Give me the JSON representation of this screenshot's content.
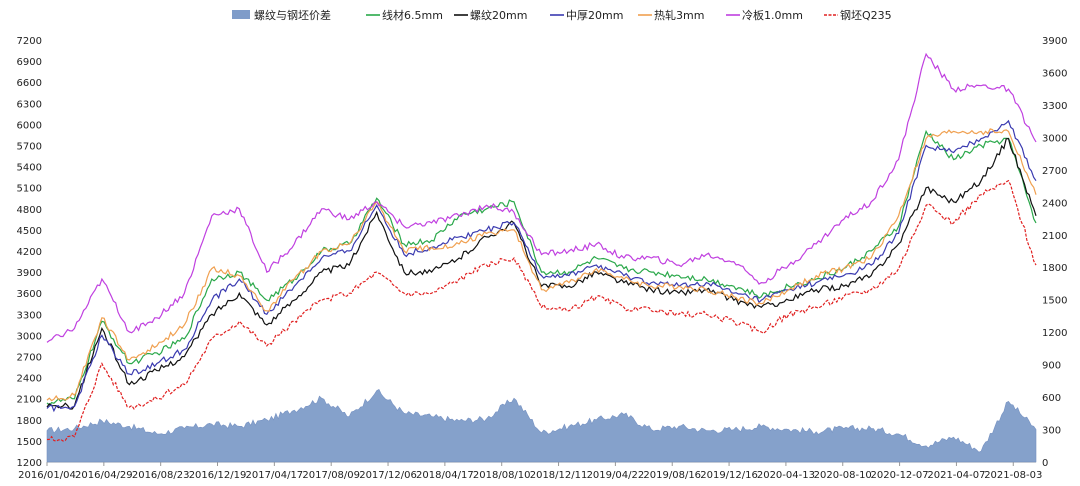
{
  "chart_data": {
    "type": "line",
    "title": "",
    "xlabel": "",
    "ylabel": "",
    "ylim_left": [
      1200,
      7200
    ],
    "ylim_right": [
      0,
      3900
    ],
    "left_ticks": [
      1200,
      1500,
      1800,
      2100,
      2400,
      2700,
      3000,
      3300,
      3600,
      3900,
      4200,
      4500,
      4800,
      5100,
      5400,
      5700,
      6000,
      6300,
      6600,
      6900,
      7200
    ],
    "right_ticks": [
      0,
      300,
      600,
      900,
      1200,
      1500,
      1800,
      2100,
      2400,
      2700,
      3000,
      3300,
      3600,
      3900
    ],
    "x_tick_labels": [
      "2016/01/04",
      "2016/04/29",
      "2016/08/23",
      "2016/12/19",
      "2017/04/17",
      "2017/08/09",
      "2017/12/06",
      "2018/04/17",
      "2018/08/10",
      "2018/12/11",
      "2019/04/22",
      "2019/08/16",
      "2019/12/16",
      "2020-04-13",
      "2020-08-10",
      "2020-12-07",
      "2021-04-07",
      "2021-08-03"
    ],
    "legend_position": "top-center",
    "x": [
      "2016/01/04",
      "2016/02/20",
      "2016/04/29",
      "2016/06/26",
      "2016/08/23",
      "2016/10/20",
      "2016/12/19",
      "2017/02/15",
      "2017/04/17",
      "2017/06/13",
      "2017/08/09",
      "2017/10/07",
      "2017/12/06",
      "2018/02/20",
      "2018/04/17",
      "2018/06/14",
      "2018/08/10",
      "2018/10/10",
      "2018/12/11",
      "2019/02/15",
      "2019/04/22",
      "2019/06/19",
      "2019/08/16",
      "2019/10/16",
      "2019/12/16",
      "2020/02/13",
      "2020/04/13",
      "2020/06/11",
      "2020/08/10",
      "2020/10/08",
      "2020/12/07",
      "2021/02/05",
      "2021/04/07",
      "2021/06/05",
      "2021/08/03",
      "2021/10/01",
      "2021/11/20"
    ],
    "series": [
      {
        "name": "螺纹与钢坯价差",
        "type": "area",
        "axis": "right",
        "color": "#7f9cc9",
        "values": [
          290,
          310,
          380,
          330,
          260,
          310,
          350,
          330,
          390,
          480,
          590,
          420,
          660,
          450,
          420,
          380,
          400,
          590,
          270,
          330,
          390,
          440,
          300,
          330,
          290,
          300,
          330,
          300,
          280,
          310,
          310,
          260,
          150,
          230,
          100,
          560,
          300
        ]
      },
      {
        "name": "线材6.5mm",
        "type": "line",
        "axis": "left",
        "color": "#2aa84a",
        "values": [
          2040,
          2100,
          3200,
          2600,
          2750,
          2950,
          3800,
          3900,
          3500,
          3800,
          4200,
          4300,
          4950,
          4300,
          4350,
          4700,
          4800,
          4900,
          3900,
          3900,
          4100,
          3950,
          3900,
          3850,
          3800,
          3700,
          3550,
          3700,
          3800,
          3950,
          4200,
          4550,
          5900,
          5500,
          5700,
          5800,
          4600
        ]
      },
      {
        "name": "螺纹20mm",
        "type": "line",
        "axis": "left",
        "color": "#111111",
        "values": [
          1980,
          2000,
          3100,
          2300,
          2500,
          2700,
          3300,
          3600,
          3150,
          3500,
          3900,
          4000,
          4750,
          3900,
          3900,
          4100,
          4400,
          4600,
          3700,
          3700,
          3900,
          3750,
          3650,
          3600,
          3650,
          3500,
          3400,
          3500,
          3650,
          3700,
          3850,
          4300,
          5100,
          4900,
          5200,
          5800,
          4700
        ]
      },
      {
        "name": "中厚20mm",
        "type": "line",
        "axis": "left",
        "color": "#3a3ab0",
        "values": [
          1960,
          1990,
          3000,
          2450,
          2600,
          2800,
          3500,
          3800,
          3300,
          3700,
          4100,
          4200,
          4850,
          4150,
          4250,
          4400,
          4500,
          4600,
          3850,
          3850,
          4000,
          3850,
          3750,
          3700,
          3750,
          3600,
          3500,
          3650,
          3750,
          3850,
          4000,
          4450,
          5700,
          5600,
          5800,
          6050,
          5200
        ]
      },
      {
        "name": "热轧3mm",
        "type": "line",
        "axis": "left",
        "color": "#f0a050",
        "values": [
          2080,
          2150,
          3250,
          2650,
          2850,
          3150,
          3950,
          3850,
          3350,
          3800,
          4200,
          4300,
          4900,
          4200,
          4250,
          4300,
          4450,
          4500,
          3650,
          3750,
          3950,
          3800,
          3700,
          3700,
          3650,
          3550,
          3450,
          3650,
          3850,
          3950,
          4100,
          4700,
          5800,
          5900,
          5900,
          5900,
          5000
        ]
      },
      {
        "name": "冷板1.0mm",
        "type": "line",
        "axis": "left",
        "color": "#c040e0",
        "values": [
          2900,
          3100,
          3800,
          3050,
          3250,
          3600,
          4700,
          4800,
          3900,
          4300,
          4800,
          4650,
          4900,
          4550,
          4600,
          4700,
          4850,
          4750,
          4150,
          4200,
          4300,
          4100,
          4100,
          4000,
          4150,
          4050,
          3750,
          4000,
          4300,
          4650,
          4900,
          5500,
          7000,
          6500,
          6550,
          6500,
          5750
        ]
      },
      {
        "name": "钢坯Q235",
        "type": "line",
        "axis": "left",
        "dashed": true,
        "color": "#e02020",
        "values": [
          1520,
          1560,
          2600,
          1980,
          2100,
          2300,
          2950,
          3200,
          2850,
          3200,
          3500,
          3600,
          3900,
          3600,
          3600,
          3800,
          4000,
          4100,
          3400,
          3350,
          3550,
          3400,
          3350,
          3300,
          3300,
          3200,
          3050,
          3300,
          3400,
          3550,
          3650,
          3950,
          4850,
          4600,
          5000,
          5200,
          4000
        ]
      }
    ]
  }
}
